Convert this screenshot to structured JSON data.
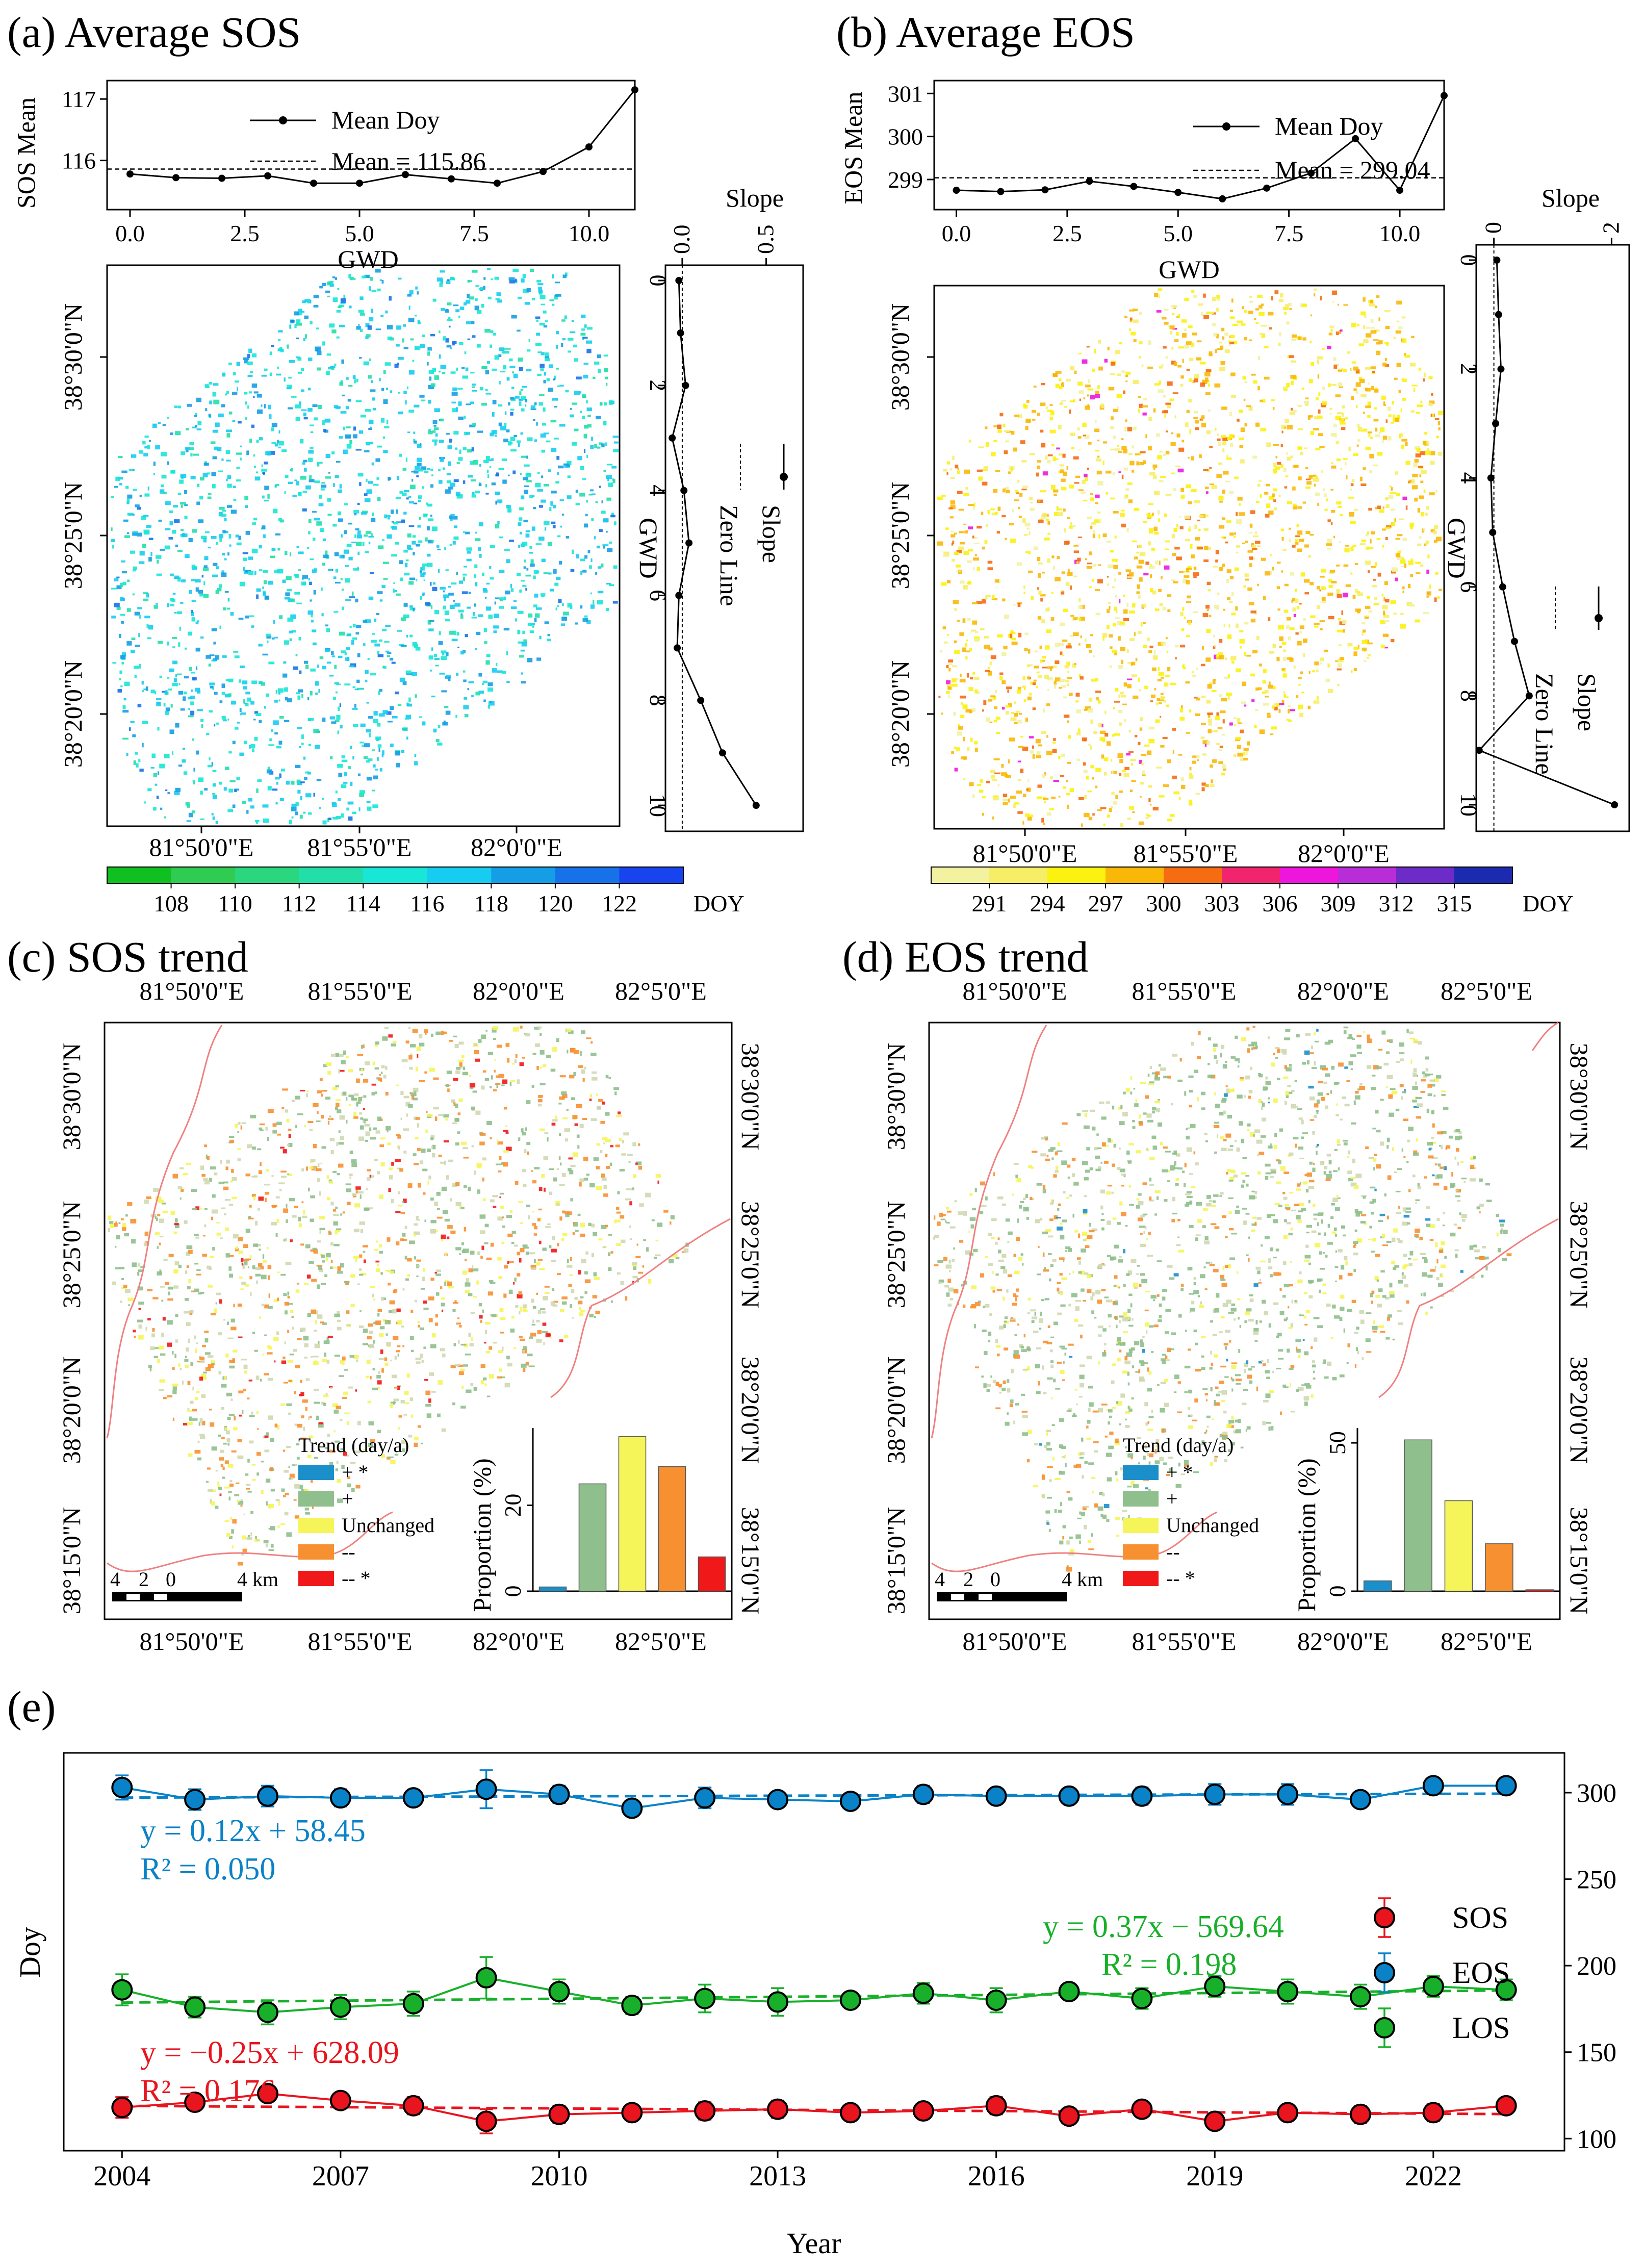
{
  "panels": {
    "a": {
      "title": "(a) Average SOS",
      "line_ylabel": "SOS Mean",
      "line_xlabel": "GWD",
      "legend_line": "Mean Doy",
      "legend_mean": "Mean = 115.86",
      "slope_title": "Slope",
      "slope_ylabel": "GWD",
      "slope_legend": [
        "Slope",
        "Zero Line"
      ],
      "lat_labels": [
        "38°30'0\"N",
        "38°25'0\"N",
        "38°20'0\"N"
      ],
      "lon_labels": [
        "81°50'0\"E",
        "81°55'0\"E",
        "82°0'0\"E"
      ],
      "colorbar_unit": "DOY",
      "colorbar_ticks": [
        "108",
        "110",
        "112",
        "114",
        "116",
        "118",
        "120",
        "122"
      ],
      "colorbar_colors": [
        "#10c020",
        "#30cc52",
        "#2ad67e",
        "#22dfaa",
        "#18e6d6",
        "#16ccf0",
        "#159ee6",
        "#1772ea",
        "#1744ee"
      ]
    },
    "b": {
      "title": "(b) Average EOS",
      "line_ylabel": "EOS Mean",
      "line_xlabel": "GWD",
      "legend_line": "Mean Doy",
      "legend_mean": "Mean = 299.04",
      "slope_title": "Slope",
      "slope_ylabel": "GWD",
      "slope_legend": [
        "Slope",
        "Zero Line"
      ],
      "lat_labels": [
        "38°30'0\"N",
        "38°25'0\"N",
        "38°20'0\"N"
      ],
      "lon_labels": [
        "81°50'0\"E",
        "81°55'0\"E",
        "82°0'0\"E"
      ],
      "colorbar_unit": "DOY",
      "colorbar_ticks": [
        "291",
        "294",
        "297",
        "300",
        "303",
        "306",
        "309",
        "312",
        "315"
      ],
      "colorbar_colors": [
        "#f2f2a0",
        "#f6ee66",
        "#fbf210",
        "#f9b808",
        "#f56c12",
        "#f0256e",
        "#ee16dc",
        "#b82dd8",
        "#6d2cc8",
        "#1c2ab0"
      ]
    },
    "c": {
      "title": "(c) SOS trend",
      "lon_labels": [
        "81°50'0\"E",
        "81°55'0\"E",
        "82°0'0\"E",
        "82°5'0\"E"
      ],
      "lat_labels": [
        "38°30'0\"N",
        "38°25'0\"N",
        "38°20'0\"N",
        "38°15'0\"N"
      ],
      "legend_title": "Trend (day/a)",
      "legend_items": [
        "+ *",
        "+",
        "Unchanged",
        "--",
        "-- *"
      ],
      "legend_colors": [
        "#1a8fc9",
        "#8fbf8c",
        "#f5f55a",
        "#f79030",
        "#f01818"
      ],
      "scale_labels": [
        "4",
        "2",
        "0",
        "4 km"
      ],
      "bar_ylabel": "Proportion (%)",
      "bar_ticks": [
        "0",
        "20"
      ]
    },
    "d": {
      "title": "(d) EOS trend",
      "lon_labels": [
        "81°50'0\"E",
        "81°55'0\"E",
        "82°0'0\"E",
        "82°5'0\"E"
      ],
      "lat_labels": [
        "38°30'0\"N",
        "38°25'0\"N",
        "38°20'0\"N",
        "38°15'0\"N"
      ],
      "legend_title": "Trend (day/a)",
      "legend_items": [
        "+ *",
        "+",
        "Unchanged",
        "--",
        "-- *"
      ],
      "legend_colors": [
        "#1a8fc9",
        "#8fbf8c",
        "#f5f55a",
        "#f79030",
        "#f01818"
      ],
      "scale_labels": [
        "4",
        "2",
        "0",
        "4 km"
      ],
      "bar_ylabel": "Proportion (%)",
      "bar_ticks": [
        "0",
        "50"
      ]
    },
    "e": {
      "title": "(e)",
      "xlabel": "Year",
      "ylabel": "Doy",
      "x_ticks": [
        "2004",
        "2007",
        "2010",
        "2013",
        "2016",
        "2019",
        "2022"
      ],
      "y_ticks": [
        "100",
        "150",
        "200",
        "250",
        "300"
      ],
      "eq_eos": "y = 0.12x + 58.45",
      "r2_eos": "R² = 0.050",
      "eq_los": "y = 0.37x − 569.64",
      "r2_los": "R² = 0.198",
      "eq_sos": "y = −0.25x + 628.09",
      "r2_sos": "R² = 0.176"
    }
  },
  "chart_data": [
    {
      "type": "line",
      "panel": "a",
      "xlabel": "GWD",
      "ylabel": "SOS Mean",
      "xlim": [
        -0.5,
        11
      ],
      "ylim": [
        115.2,
        117.3
      ],
      "x_ticks": [
        0,
        2.5,
        5,
        7.5,
        10
      ],
      "y_ticks": [
        116,
        117
      ],
      "series": [
        {
          "name": "Mean Doy",
          "x": [
            0,
            1,
            2,
            3,
            4,
            5,
            6,
            7,
            8,
            9,
            10,
            11
          ],
          "values": [
            115.78,
            115.72,
            115.71,
            115.75,
            115.63,
            115.63,
            115.77,
            115.7,
            115.63,
            115.82,
            116.22,
            117.15
          ]
        }
      ],
      "reference_line": {
        "name": "Mean = 115.86",
        "value": 115.86
      }
    },
    {
      "type": "line",
      "panel": "a-slope",
      "xlabel": "Slope",
      "ylabel": "GWD",
      "xlim": [
        -0.1,
        0.72
      ],
      "ylim": [
        0,
        10.3
      ],
      "x_ticks": [
        0.0,
        0.5
      ],
      "y_ticks": [
        0,
        2,
        4,
        6,
        8,
        10
      ],
      "series": [
        {
          "name": "Slope",
          "gwd": [
            0,
            1,
            2,
            3,
            4,
            5,
            6,
            7,
            8,
            9,
            10
          ],
          "values": [
            -0.02,
            -0.01,
            0.02,
            -0.06,
            0.01,
            0.04,
            -0.02,
            -0.03,
            0.11,
            0.24,
            0.44
          ]
        }
      ],
      "zero_line": 0
    },
    {
      "type": "line",
      "panel": "b",
      "xlabel": "GWD",
      "ylabel": "EOS Mean",
      "xlim": [
        -0.5,
        11
      ],
      "ylim": [
        298.3,
        301.3
      ],
      "x_ticks": [
        0,
        2.5,
        5,
        7.5,
        10
      ],
      "y_ticks": [
        299,
        300,
        301
      ],
      "series": [
        {
          "name": "Mean Doy",
          "x": [
            0,
            1,
            2,
            3,
            4,
            5,
            6,
            7,
            8,
            9,
            10,
            11
          ],
          "values": [
            298.75,
            298.72,
            298.76,
            298.96,
            298.84,
            298.7,
            298.55,
            298.8,
            299.15,
            299.95,
            298.75,
            300.95
          ]
        }
      ],
      "reference_line": {
        "name": "Mean = 299.04",
        "value": 299.04
      }
    },
    {
      "type": "line",
      "panel": "b-slope",
      "xlabel": "Slope",
      "ylabel": "GWD",
      "xlim": [
        -0.3,
        2.3
      ],
      "ylim": [
        0,
        10.3
      ],
      "x_ticks": [
        0,
        2
      ],
      "y_ticks": [
        0,
        2,
        4,
        6,
        8,
        10
      ],
      "series": [
        {
          "name": "Slope",
          "gwd": [
            0,
            1,
            2,
            3,
            4,
            5,
            6,
            7,
            8,
            9,
            10
          ],
          "values": [
            0.05,
            0.08,
            0.12,
            0.03,
            -0.05,
            -0.02,
            0.15,
            0.35,
            0.6,
            -0.25,
            2.05
          ]
        }
      ],
      "zero_line": 0
    },
    {
      "type": "bar",
      "panel": "c",
      "ylabel": "Proportion (%)",
      "categories": [
        "+ *",
        "+",
        "Unchanged",
        "--",
        "-- *"
      ],
      "values": [
        1,
        25,
        36,
        29,
        8
      ],
      "ylim": [
        0,
        38
      ]
    },
    {
      "type": "bar",
      "panel": "d",
      "ylabel": "Proportion (%)",
      "categories": [
        "+ *",
        "+",
        "Unchanged",
        "--",
        "-- *"
      ],
      "values": [
        3.5,
        51,
        30.5,
        16,
        0.5
      ],
      "ylim": [
        0,
        55
      ]
    },
    {
      "type": "line",
      "panel": "e",
      "xlabel": "Year",
      "ylabel": "Doy",
      "xlim": [
        2003.2,
        2023.8
      ],
      "ylim": [
        93,
        323
      ],
      "x": [
        2004,
        2005,
        2006,
        2007,
        2008,
        2009,
        2010,
        2011,
        2012,
        2013,
        2014,
        2015,
        2016,
        2017,
        2018,
        2019,
        2020,
        2021,
        2022,
        2023
      ],
      "series": [
        {
          "name": "SOS",
          "color": "#e8141e",
          "values": [
            118,
            121,
            126,
            122,
            119,
            110,
            114,
            115,
            116,
            117,
            115,
            116,
            119,
            113,
            117,
            110,
            115,
            114,
            115,
            119
          ],
          "errors": [
            6,
            4,
            4,
            4,
            5,
            7,
            5,
            4,
            5,
            5,
            4,
            4,
            5,
            3,
            3,
            4,
            4,
            5,
            5,
            4
          ],
          "fit": {
            "slope": -0.25,
            "intercept": 628.09,
            "r2": 0.176
          }
        },
        {
          "name": "EOS",
          "color": "#0a82c8",
          "values": [
            303,
            296,
            298,
            297,
            297,
            302,
            299,
            291,
            297,
            296,
            295,
            299,
            298,
            298,
            298,
            299,
            299,
            296,
            304,
            304
          ],
          "errors": [
            7,
            6,
            6,
            5,
            3,
            11,
            5,
            4,
            6,
            4,
            3,
            5,
            4,
            3,
            5,
            6,
            6,
            4,
            3,
            4
          ],
          "fit": {
            "slope": 0.12,
            "intercept": 58.45,
            "r2": 0.05
          }
        },
        {
          "name": "LOS",
          "color": "#18b02a",
          "values": [
            186,
            176,
            173,
            176,
            178,
            193,
            185,
            177,
            181,
            179,
            180,
            184,
            180,
            185,
            181,
            188,
            185,
            182,
            188,
            186
          ],
          "errors": [
            9,
            6,
            7,
            7,
            7,
            12,
            7,
            5,
            8,
            8,
            4,
            6,
            7,
            4,
            6,
            6,
            7,
            7,
            6,
            6
          ],
          "fit": {
            "slope": 0.37,
            "intercept": -569.64,
            "r2": 0.198
          }
        }
      ],
      "legend": "right-middle",
      "secondary_y_axis": "right"
    }
  ]
}
